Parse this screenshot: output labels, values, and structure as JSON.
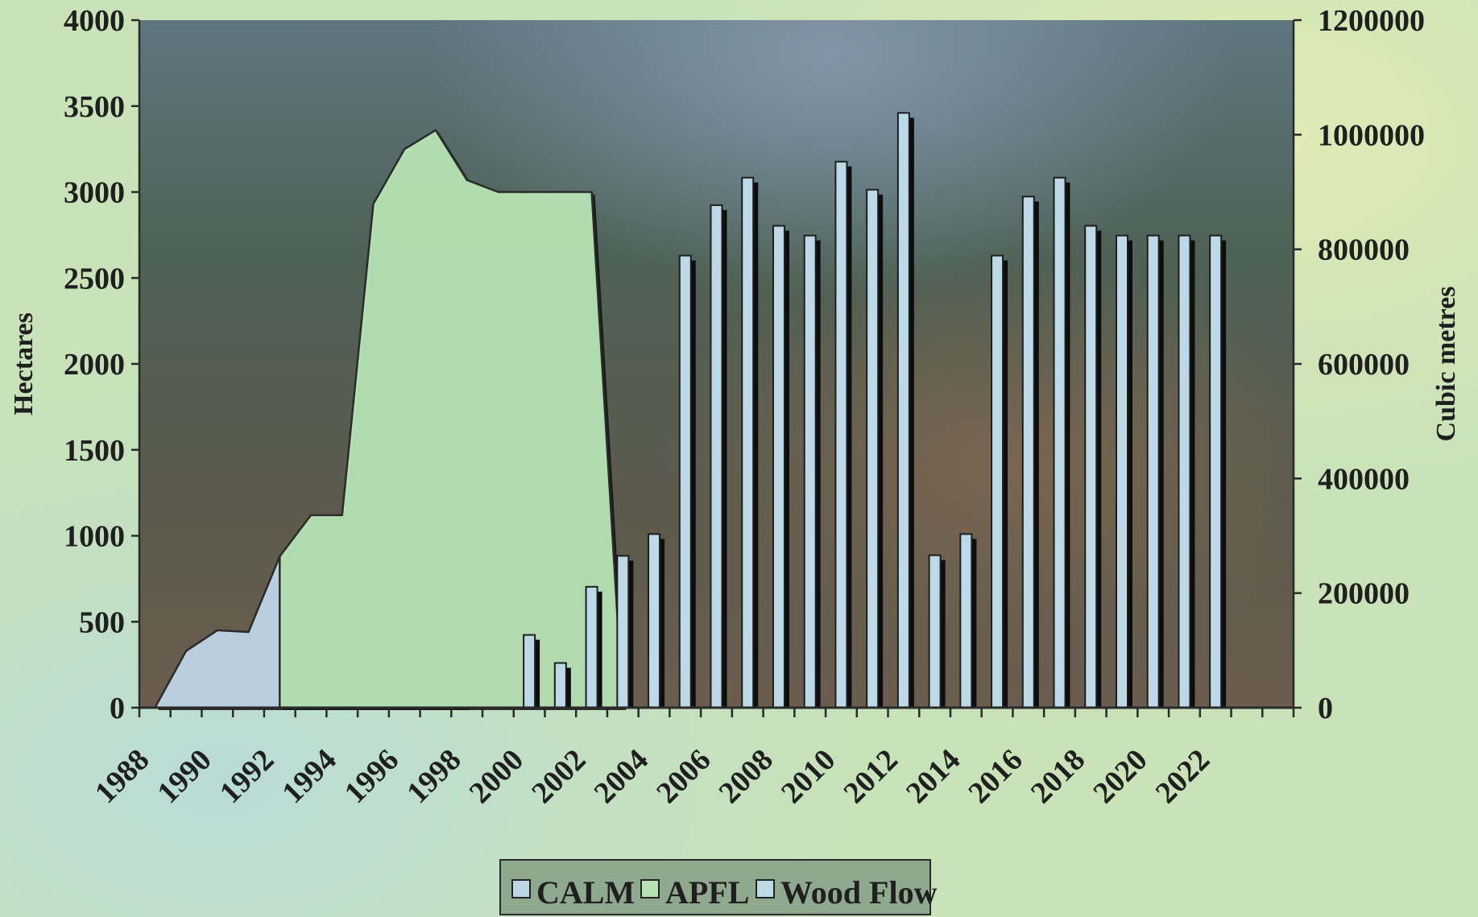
{
  "chart_data": {
    "type": "bar",
    "title": "",
    "years": [
      1988,
      1989,
      1990,
      1991,
      1992,
      1993,
      1994,
      1995,
      1996,
      1997,
      1998,
      1999,
      2000,
      2001,
      2002,
      2003,
      2004,
      2005,
      2006,
      2007,
      2008,
      2009,
      2010,
      2011,
      2012,
      2013,
      2014,
      2015,
      2016,
      2017,
      2018,
      2019,
      2020,
      2021,
      2022,
      2023,
      2024
    ],
    "x_tick_labels": [
      "1988",
      "1990",
      "1992",
      "1994",
      "1996",
      "1998",
      "2000",
      "2002",
      "2004",
      "2006",
      "2008",
      "2010",
      "2012",
      "2014",
      "2016",
      "2018",
      "2020",
      "2022"
    ],
    "left_axis": {
      "label": "Hectares",
      "min": 0,
      "max": 4000,
      "step": 500,
      "tick_labels": [
        "0",
        "500",
        "1000",
        "1500",
        "2000",
        "2500",
        "3000",
        "3500",
        "4000"
      ]
    },
    "right_axis": {
      "label": "Cubic metres",
      "min": 0,
      "max": 1200000,
      "step": 200000,
      "tick_labels": [
        "0",
        "200000",
        "400000",
        "600000",
        "800000",
        "1000000",
        "1200000"
      ]
    },
    "series": [
      {
        "name": "CALM",
        "type": "area",
        "axis": "left",
        "color": "#bdd4e4",
        "x": [
          1988.5,
          1989.5,
          1990.5,
          1991.5,
          1992.5,
          1993.5,
          1994.5,
          1995.5,
          1996.5,
          1997.5,
          1998.5
        ],
        "values": [
          0,
          330,
          450,
          440,
          880,
          160,
          50,
          160,
          230,
          300,
          0
        ]
      },
      {
        "name": "APFL",
        "type": "area",
        "axis": "left",
        "color": "#b6e2b4",
        "x": [
          1992.5,
          1993.5,
          1994.5,
          1995.5,
          1996.5,
          1997.5,
          1998.5,
          1999.5,
          2000.5,
          2001.5,
          2002.5,
          2003.5
        ],
        "values": [
          880,
          1120,
          1120,
          2930,
          3250,
          3360,
          3070,
          3000,
          3000,
          3000,
          3000,
          0
        ]
      },
      {
        "name": "Wood Flow",
        "type": "bar",
        "axis": "right",
        "color": "#bdd8e6",
        "x": [
          2000.5,
          2001.5,
          2002.5,
          2003.5,
          2004.5,
          2005.5,
          2006.5,
          2007.5,
          2008.5,
          2009.5,
          2010.5,
          2011.5,
          2012.5,
          2013.5,
          2014.5,
          2015.5,
          2016.5,
          2017.5,
          2018.5,
          2019.5,
          2020.5,
          2021.5,
          2022.5
        ],
        "values": [
          127000,
          78000,
          211000,
          265000,
          303000,
          789000,
          877000,
          925000,
          841000,
          824000,
          953000,
          904000,
          1038000,
          266000,
          303000,
          789000,
          892000,
          925000,
          841000,
          824000,
          824000,
          824000,
          824000
        ]
      }
    ],
    "legend": {
      "position": "bottom-center",
      "items": [
        "CALM",
        "APFL",
        "Wood Flow"
      ]
    },
    "grid": false,
    "colors": {
      "calm": "#bdd4e4",
      "apfl": "#b6e2b4",
      "wood_flow": "#bdd8e6",
      "legend_box": "#8fa98e"
    }
  }
}
